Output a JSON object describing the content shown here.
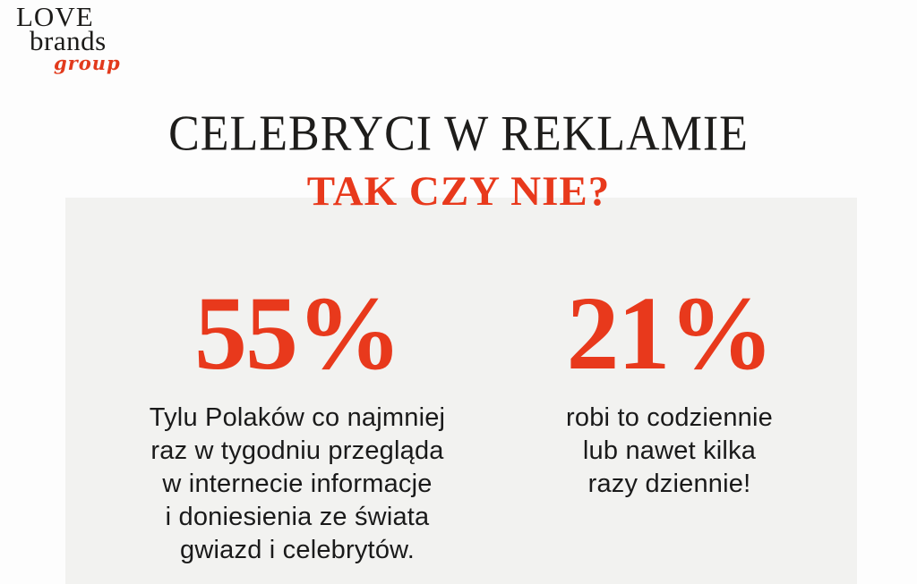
{
  "logo": {
    "line1": "LOVE",
    "line2": "brands",
    "line3": "group"
  },
  "header": {
    "title": "CELEBRYCI W REKLAMIE",
    "subtitle": "TAK CZY NIE?"
  },
  "stats": [
    {
      "value": "55%",
      "lines": [
        "Tylu Polaków co najmniej",
        "raz w tygodniu przegląda",
        "w internecie informacje",
        "i doniesienia ze świata",
        "gwiazd i celebrytów."
      ]
    },
    {
      "value": "21%",
      "lines": [
        "robi to codziennie",
        "lub nawet kilka",
        "razy dziennie!"
      ]
    }
  ],
  "colors": {
    "accent_red": "#e8391c",
    "heading_dark": "#1e1d1b",
    "panel_gray": "#f2f2f0",
    "body_text": "#1a1a1a",
    "background": "#fdfdfd"
  }
}
